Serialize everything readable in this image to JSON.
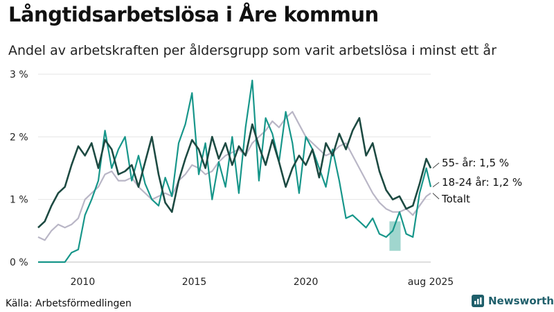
{
  "header": {
    "title": "Långtidsarbetslösa i Åre kommun",
    "subtitle": "Andel av arbetskraften per åldersgrupp som varit arbetslösa i minst ett år"
  },
  "footer": {
    "source": "Källa: Arbetsförmedlingen",
    "brand": "Newsworthy"
  },
  "chart_data": {
    "type": "line",
    "xlabel": "",
    "ylabel": "",
    "xlim": [
      2008.0,
      2025.6
    ],
    "ylim": [
      0,
      3
    ],
    "grid": true,
    "y_ticks": [
      {
        "value": 0,
        "label": "0 %"
      },
      {
        "value": 1,
        "label": "1 %"
      },
      {
        "value": 2,
        "label": "2 %"
      },
      {
        "value": 3,
        "label": "3 %"
      }
    ],
    "x_ticks": [
      {
        "value": 2010,
        "label": "2010"
      },
      {
        "value": 2015,
        "label": "2015"
      },
      {
        "value": 2020,
        "label": "2020"
      },
      {
        "value": 2025.6,
        "label": "aug 2025"
      }
    ],
    "colors": {
      "55+": "#1d4a42",
      "18-24": "#17968a",
      "total": "#b9b6c6",
      "band": "#8fcfc6"
    },
    "series": [
      {
        "name": "55- år",
        "end_label": "55- år: 1,5 %",
        "x": [
          2008.0,
          2008.3,
          2008.6,
          2008.9,
          2009.2,
          2009.5,
          2009.8,
          2010.1,
          2010.4,
          2010.7,
          2011.0,
          2011.3,
          2011.6,
          2011.9,
          2012.2,
          2012.5,
          2012.8,
          2013.1,
          2013.4,
          2013.7,
          2014.0,
          2014.3,
          2014.6,
          2014.9,
          2015.2,
          2015.5,
          2015.8,
          2016.1,
          2016.4,
          2016.7,
          2017.0,
          2017.3,
          2017.6,
          2017.9,
          2018.2,
          2018.5,
          2018.8,
          2019.1,
          2019.4,
          2019.7,
          2020.0,
          2020.3,
          2020.6,
          2020.9,
          2021.2,
          2021.5,
          2021.8,
          2022.1,
          2022.4,
          2022.7,
          2023.0,
          2023.3,
          2023.6,
          2023.9,
          2024.2,
          2024.5,
          2024.8,
          2025.1,
          2025.4,
          2025.6
        ],
        "values": [
          0.55,
          0.65,
          0.9,
          1.1,
          1.2,
          1.55,
          1.85,
          1.7,
          1.9,
          1.5,
          1.95,
          1.8,
          1.4,
          1.45,
          1.55,
          1.2,
          1.6,
          2.0,
          1.4,
          0.95,
          0.8,
          1.3,
          1.65,
          1.95,
          1.8,
          1.5,
          2.0,
          1.65,
          1.9,
          1.55,
          1.85,
          1.7,
          2.2,
          1.85,
          1.55,
          1.95,
          1.6,
          1.2,
          1.5,
          1.7,
          1.55,
          1.8,
          1.35,
          1.9,
          1.7,
          2.05,
          1.8,
          2.1,
          2.3,
          1.7,
          1.9,
          1.45,
          1.15,
          1.0,
          1.05,
          0.85,
          0.9,
          1.25,
          1.65,
          1.5
        ]
      },
      {
        "name": "18-24 år",
        "end_label": "18-24 år: 1,2 %",
        "x": [
          2008.0,
          2008.3,
          2008.6,
          2008.9,
          2009.2,
          2009.5,
          2009.8,
          2010.1,
          2010.4,
          2010.7,
          2011.0,
          2011.3,
          2011.6,
          2011.9,
          2012.2,
          2012.5,
          2012.8,
          2013.1,
          2013.4,
          2013.7,
          2014.0,
          2014.3,
          2014.6,
          2014.9,
          2015.2,
          2015.5,
          2015.8,
          2016.1,
          2016.4,
          2016.7,
          2017.0,
          2017.3,
          2017.6,
          2017.9,
          2018.2,
          2018.5,
          2018.8,
          2019.1,
          2019.4,
          2019.7,
          2020.0,
          2020.3,
          2020.6,
          2020.9,
          2021.2,
          2021.5,
          2021.8,
          2022.1,
          2022.4,
          2022.7,
          2023.0,
          2023.3,
          2023.6,
          2023.9,
          2024.2,
          2024.5,
          2024.8,
          2025.1,
          2025.4,
          2025.6
        ],
        "values": [
          0.0,
          0.0,
          0.0,
          0.0,
          0.0,
          0.15,
          0.2,
          0.75,
          1.0,
          1.3,
          2.1,
          1.5,
          1.8,
          2.0,
          1.3,
          1.7,
          1.25,
          1.0,
          0.9,
          1.35,
          1.05,
          1.9,
          2.2,
          2.7,
          1.4,
          1.9,
          1.0,
          1.6,
          1.2,
          2.0,
          1.1,
          2.15,
          2.9,
          1.3,
          2.3,
          2.05,
          1.6,
          2.4,
          1.9,
          1.1,
          2.0,
          1.8,
          1.5,
          1.2,
          1.8,
          1.3,
          0.7,
          0.75,
          0.65,
          0.55,
          0.7,
          0.45,
          0.4,
          0.5,
          0.8,
          0.45,
          0.4,
          1.1,
          1.5,
          1.2
        ]
      },
      {
        "name": "Totalt",
        "end_label": "Totalt",
        "x": [
          2008.0,
          2008.3,
          2008.6,
          2008.9,
          2009.2,
          2009.5,
          2009.8,
          2010.1,
          2010.4,
          2010.7,
          2011.0,
          2011.3,
          2011.6,
          2011.9,
          2012.2,
          2012.5,
          2012.8,
          2013.1,
          2013.4,
          2013.7,
          2014.0,
          2014.3,
          2014.6,
          2014.9,
          2015.2,
          2015.5,
          2015.8,
          2016.1,
          2016.4,
          2016.7,
          2017.0,
          2017.3,
          2017.6,
          2017.9,
          2018.2,
          2018.5,
          2018.8,
          2019.1,
          2019.4,
          2019.7,
          2020.0,
          2020.3,
          2020.6,
          2020.9,
          2021.2,
          2021.5,
          2021.8,
          2022.1,
          2022.4,
          2022.7,
          2023.0,
          2023.3,
          2023.6,
          2023.9,
          2024.2,
          2024.5,
          2024.8,
          2025.1,
          2025.4,
          2025.6
        ],
        "values": [
          0.4,
          0.35,
          0.5,
          0.6,
          0.55,
          0.6,
          0.7,
          1.0,
          1.1,
          1.2,
          1.4,
          1.45,
          1.3,
          1.3,
          1.35,
          1.2,
          1.1,
          1.0,
          1.05,
          1.1,
          1.05,
          1.3,
          1.4,
          1.55,
          1.5,
          1.4,
          1.45,
          1.6,
          1.7,
          1.75,
          1.8,
          1.7,
          1.9,
          2.0,
          2.1,
          2.25,
          2.15,
          2.3,
          2.4,
          2.2,
          2.0,
          1.9,
          1.8,
          1.7,
          1.75,
          1.85,
          1.9,
          1.7,
          1.5,
          1.3,
          1.1,
          0.95,
          0.85,
          0.8,
          0.8,
          0.85,
          0.75,
          0.9,
          1.05,
          1.1
        ]
      }
    ],
    "band_18_24": {
      "x": [
        2023.75,
        2024.25
      ],
      "low": [
        0.18,
        0.18
      ],
      "high": [
        0.65,
        0.65
      ]
    }
  }
}
